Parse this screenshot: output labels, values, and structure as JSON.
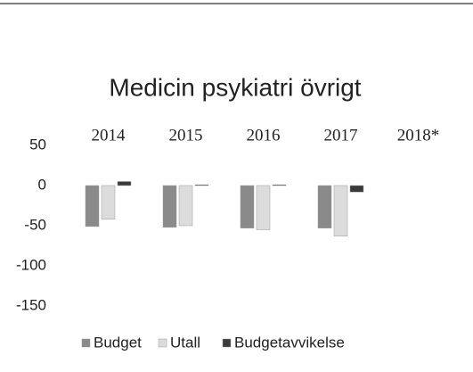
{
  "chart_data": {
    "type": "bar",
    "title": "Medicin psykiatri övrigt",
    "categories": [
      "2014",
      "2015",
      "2016",
      "2017",
      "2018*"
    ],
    "series": [
      {
        "name": "Budget",
        "color": "#8a8a8a",
        "values": [
          -51,
          -52,
          -53,
          -53,
          null
        ]
      },
      {
        "name": "Utall",
        "color": "#dcdcdc",
        "values": [
          -42,
          -50,
          -55,
          -63,
          null
        ]
      },
      {
        "name": "Budgetavvikelse",
        "color": "#3a3a3a",
        "values": [
          5,
          1,
          1,
          -8,
          null
        ]
      }
    ],
    "ylim": [
      -150,
      50
    ],
    "yticks": [
      -150,
      -100,
      -50,
      0,
      50
    ],
    "grid": false,
    "legend": "bottom"
  }
}
